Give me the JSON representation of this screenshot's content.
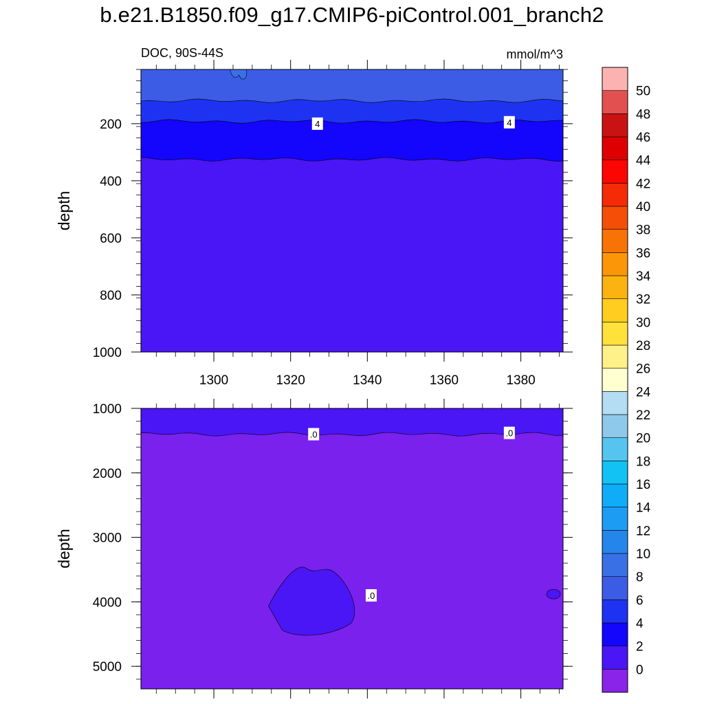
{
  "title": "b.e21.B1850.f09_g17.CMIP6-piControl.001_branch2",
  "chart_data": [
    {
      "type": "heatmap",
      "panel": "upper",
      "left_label": "DOC, 90S-44S",
      "right_label": "mmol/m^3",
      "ylabel": "depth",
      "xlabel": "",
      "xlim": [
        1281,
        1391
      ],
      "ylim": [
        1000,
        10
      ],
      "xticks": [
        1300,
        1320,
        1340,
        1360,
        1380
      ],
      "xtick_labels": [
        "1300",
        "1320",
        "1340",
        "1360",
        "1380"
      ],
      "yticks": [
        200,
        400,
        600,
        800,
        1000
      ],
      "ytick_labels": [
        "200",
        "400",
        "600",
        "800",
        "1000"
      ],
      "bands": [
        {
          "depth_top": 10,
          "depth_bottom": 120,
          "level": "6-8",
          "color": "#3c5ce6"
        },
        {
          "depth_top": 120,
          "depth_bottom": 192,
          "level": "4-6",
          "color": "#1e33f2"
        },
        {
          "depth_top": 192,
          "depth_bottom": 325,
          "level": "2-4",
          "color": "#1405fc"
        },
        {
          "depth_top": 325,
          "depth_bottom": 1000,
          "level": "0-2",
          "color": "#4a16f5"
        }
      ],
      "contour_labels": [
        {
          "text": "4",
          "x": 1327,
          "depth": 200
        },
        {
          "text": "4",
          "x": 1377,
          "depth": 195
        }
      ]
    },
    {
      "type": "heatmap",
      "panel": "lower",
      "ylabel": "depth",
      "xlabel": "",
      "xlim": [
        1281,
        1391
      ],
      "ylim": [
        5350,
        1000
      ],
      "yticks": [
        1000,
        2000,
        3000,
        4000,
        5000
      ],
      "ytick_labels": [
        "1000",
        "2000",
        "3000",
        "4000",
        "5000"
      ],
      "bands": [
        {
          "depth_top": 1000,
          "depth_bottom": 1400,
          "level": "0-2",
          "color": "#4a16f5"
        },
        {
          "depth_top": 1400,
          "depth_bottom": 5350,
          "level": "< 0",
          "color": "#7a21ee"
        }
      ],
      "contour_labels": [
        {
          "text": ".0",
          "x": 1326,
          "depth": 1400
        },
        {
          "text": ".0",
          "x": 1377,
          "depth": 1380
        },
        {
          "text": ".0",
          "x": 1341,
          "depth": 3900
        }
      ]
    }
  ],
  "colorbar": {
    "labels": [
      "0",
      "2",
      "4",
      "6",
      "8",
      "10",
      "12",
      "14",
      "16",
      "18",
      "20",
      "22",
      "24",
      "26",
      "28",
      "30",
      "32",
      "34",
      "36",
      "38",
      "40",
      "42",
      "44",
      "46",
      "48",
      "50"
    ],
    "colors": [
      "#8a24e8",
      "#4a16f5",
      "#1405fc",
      "#1e33f2",
      "#3c5ce6",
      "#3a70e6",
      "#2586ea",
      "#1c9cf2",
      "#10acf8",
      "#12c2f4",
      "#55c5ef",
      "#8ec9ec",
      "#b4dcf2",
      "#ffffd0",
      "#fff18a",
      "#ffe13c",
      "#fecd1f",
      "#fcb311",
      "#fb9609",
      "#f77306",
      "#f44f07",
      "#f52a06",
      "#fc0603",
      "#de0000",
      "#c91313",
      "#e35050",
      "#fdb2b2"
    ]
  },
  "colors": {
    "line": "#000000",
    "background": "#ffffff"
  }
}
